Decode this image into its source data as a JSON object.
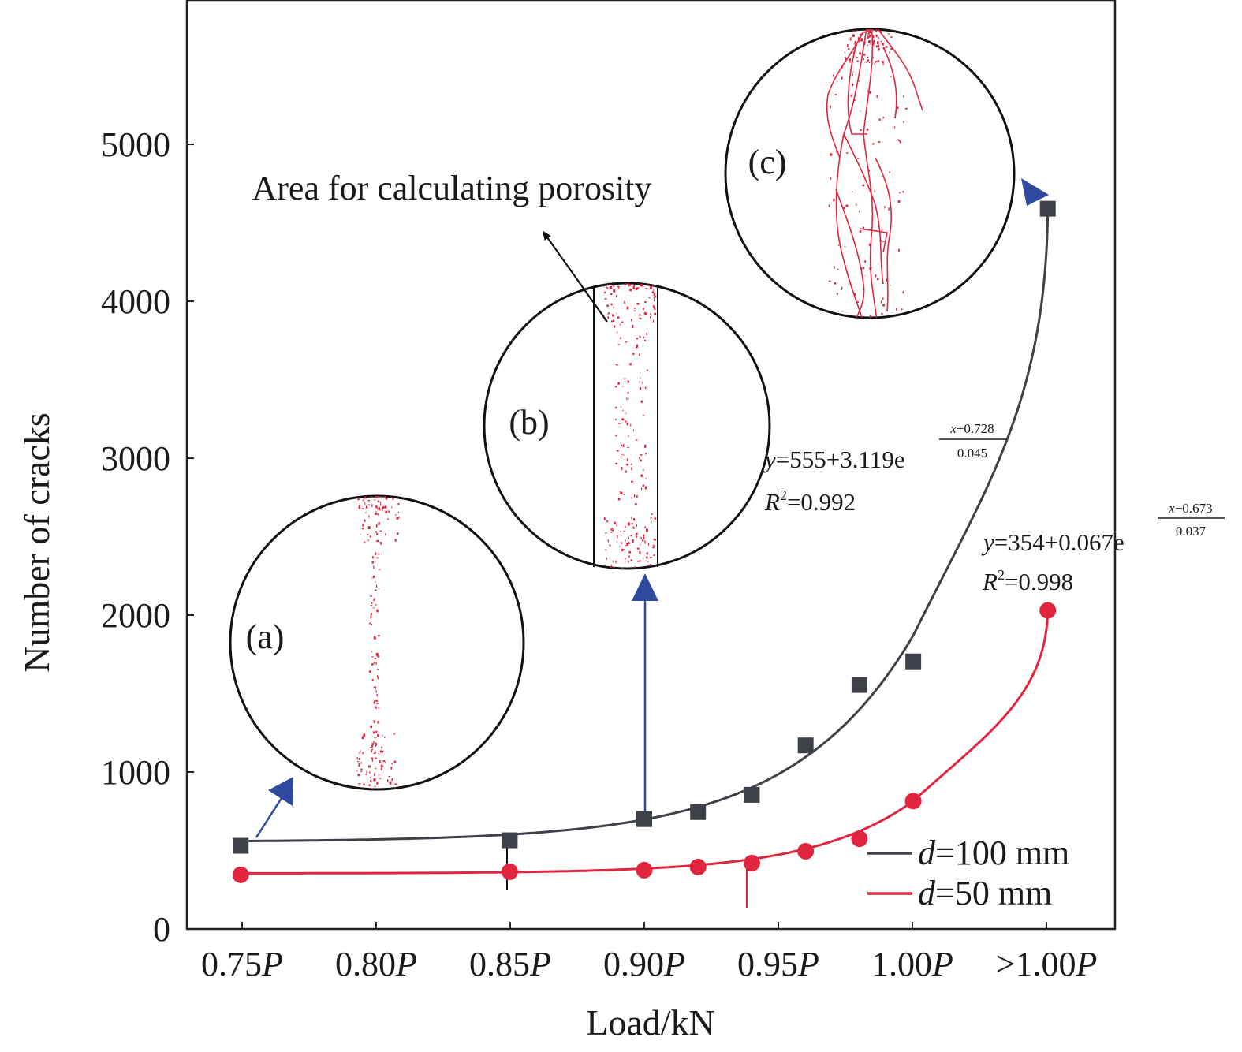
{
  "chart_data": {
    "type": "scatter",
    "xlabel": "Load/kN",
    "ylabel": "Number of cracks",
    "x_tick_labels": [
      {
        "num": "0.75",
        "unit": "P"
      },
      {
        "num": "0.80",
        "unit": "P"
      },
      {
        "num": "0.85",
        "unit": "P"
      },
      {
        "num": "0.90",
        "unit": "P"
      },
      {
        "num": "0.95",
        "unit": "P"
      },
      {
        "num": "1.00",
        "unit": "P"
      },
      {
        "num": ">1.00",
        "unit": "P"
      }
    ],
    "y_ticks": [
      "0",
      "1000",
      "2000",
      "3000",
      "4000",
      "5000"
    ],
    "xlim": [
      0.73,
      1.075
    ],
    "ylim": [
      0,
      5920
    ],
    "grid": false,
    "legend_position": "bottom-right",
    "series": [
      {
        "name": "100 mm",
        "legend": {
          "italic": "d",
          "rest": "=100 mm"
        },
        "color": "#3f4148",
        "marker": "square",
        "x": [
          0.75,
          0.85,
          0.9,
          0.92,
          0.94,
          0.96,
          0.98,
          1.0,
          1.05
        ],
        "y": [
          530,
          565,
          700,
          745,
          855,
          1170,
          1555,
          1705,
          4590
        ],
        "fit": {
          "y0": 555,
          "A": 3.119,
          "x0": 0.728,
          "t": 0.045,
          "x_range": [
            0.75,
            1.05
          ]
        },
        "equation": {
          "y": "y",
          "base": "=555+3.119e",
          "num": "x",
          "num_rest": "−0.728",
          "den": "0.045"
        },
        "r2": {
          "R": "R",
          "sup": "2",
          "rest": "=0.992"
        }
      },
      {
        "name": "50 mm",
        "legend": {
          "italic": "d",
          "rest": "=50 mm"
        },
        "color": "#e2253f",
        "marker": "circle",
        "x": [
          0.75,
          0.85,
          0.9,
          0.92,
          0.94,
          0.96,
          0.98,
          1.0,
          1.05
        ],
        "y": [
          345,
          365,
          375,
          395,
          420,
          495,
          575,
          815,
          2030
        ],
        "fit": {
          "y0": 354,
          "A": 0.067,
          "x0": 0.673,
          "t": 0.037,
          "x_range": [
            0.75,
            1.05
          ]
        },
        "equation": {
          "y": "y",
          "base": "=354+0.067e",
          "num": "x",
          "num_rest": "−0.673",
          "den": "0.037"
        },
        "r2": {
          "R": "R",
          "sup": "2",
          "rest": "=0.998"
        }
      }
    ],
    "insets": [
      {
        "label": "(a)"
      },
      {
        "label": "(b)"
      },
      {
        "label": "(c)"
      }
    ],
    "annotation": "Area for calculating porosity"
  }
}
